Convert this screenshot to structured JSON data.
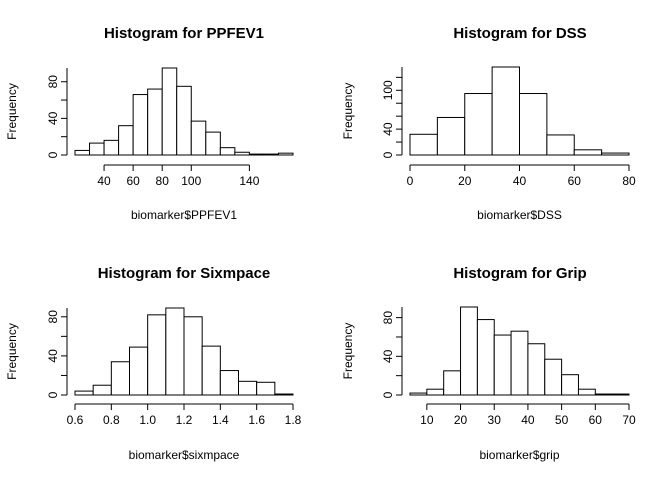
{
  "chart_data": [
    {
      "type": "histogram",
      "title": "Histogram for PPFEV1",
      "xlabel": "biomarker$PPFEV1",
      "ylabel": "Frequency",
      "bin_edges": [
        20,
        30,
        40,
        50,
        60,
        70,
        80,
        90,
        100,
        110,
        120,
        130,
        140,
        150,
        160,
        170
      ],
      "values": [
        5,
        13,
        16,
        32,
        66,
        72,
        95,
        75,
        37,
        25,
        8,
        3,
        1,
        1,
        2
      ],
      "xlim": [
        20,
        170
      ],
      "ylim": [
        0,
        95
      ],
      "x_ticks": [
        40,
        60,
        80,
        100,
        140
      ],
      "y_ticks": [
        0,
        40,
        80
      ]
    },
    {
      "type": "histogram",
      "title": "Histogram for DSS",
      "xlabel": "biomarker$DSS",
      "ylabel": "Frequency",
      "bin_edges": [
        0,
        10,
        20,
        30,
        40,
        50,
        60,
        70,
        80
      ],
      "values": [
        32,
        58,
        95,
        136,
        95,
        31,
        8,
        3
      ],
      "xlim": [
        0,
        80
      ],
      "ylim": [
        0,
        136
      ],
      "x_ticks": [
        0,
        20,
        40,
        60,
        80
      ],
      "y_ticks": [
        0,
        40,
        100
      ]
    },
    {
      "type": "histogram",
      "title": "Histogram for Sixmpace",
      "xlabel": "biomarker$sixmpace",
      "ylabel": "Frequency",
      "bin_edges": [
        0.6,
        0.7,
        0.8,
        0.9,
        1.0,
        1.1,
        1.2,
        1.3,
        1.4,
        1.5,
        1.6,
        1.7,
        1.8
      ],
      "values": [
        4,
        10,
        34,
        49,
        82,
        89,
        80,
        50,
        25,
        14,
        13,
        1
      ],
      "xlim": [
        0.6,
        1.8
      ],
      "ylim": [
        0,
        89
      ],
      "x_ticks": [
        0.6,
        0.8,
        1.0,
        1.2,
        1.4,
        1.6,
        1.8
      ],
      "x_tick_labels": [
        "0.6",
        "0.8",
        "1.0",
        "1.2",
        "1.4",
        "1.6",
        "1.8"
      ],
      "y_ticks": [
        0,
        40,
        80
      ]
    },
    {
      "type": "histogram",
      "title": "Histogram for Grip",
      "xlabel": "biomarker$grip",
      "ylabel": "Frequency",
      "bin_edges": [
        5,
        10,
        15,
        20,
        25,
        30,
        35,
        40,
        45,
        50,
        55,
        60,
        65,
        70
      ],
      "values": [
        2,
        6,
        25,
        91,
        78,
        62,
        66,
        53,
        37,
        21,
        6,
        1,
        1
      ],
      "xlim": [
        5,
        70
      ],
      "ylim": [
        0,
        91
      ],
      "x_ticks": [
        10,
        20,
        30,
        40,
        50,
        60,
        70
      ],
      "y_ticks": [
        0,
        40,
        80
      ]
    }
  ]
}
